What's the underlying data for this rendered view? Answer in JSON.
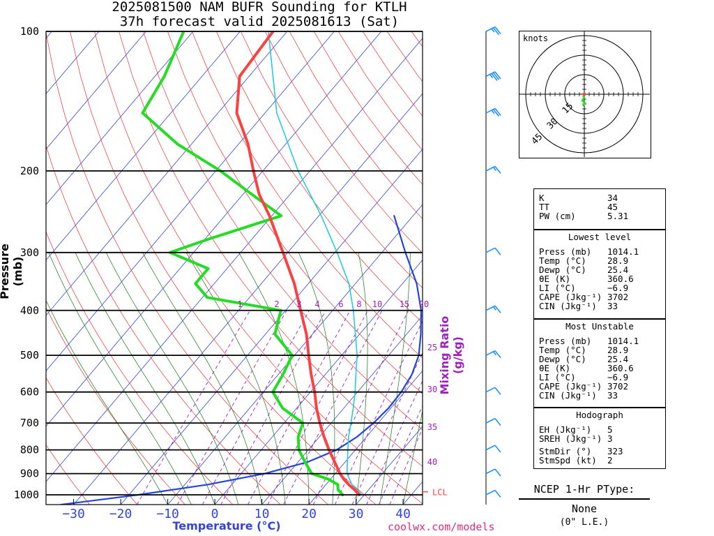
{
  "title": {
    "line1": "2025081500 NAM BUFR Sounding for KTLH",
    "line2": "37h forecast valid 2025081613 (Sat)"
  },
  "credit": "coolwx.com/models",
  "colors": {
    "temperature": "#ff4040",
    "dewpoint": "#22dd22",
    "virtual_temp": "#22ccdd",
    "parcel": "#2244dd",
    "isotherm": "#3344dd",
    "dry_adiabat": "#ee3030",
    "moist_adiabat": "#117711",
    "mixing_ratio": "#a020c0",
    "barbs": "#1e90ff",
    "lcl": "#ff4040"
  },
  "chart_data": {
    "type": "line",
    "diagram": "skew-t log-p",
    "xlabel": "Temperature (°C)",
    "ylabel": "Pressure (mb)",
    "secondary_label": "Mixing Ratio (g/kg)",
    "x_ticks": [
      "−30",
      "−20",
      "−10",
      "0",
      "10",
      "20",
      "30",
      "40"
    ],
    "y_ticks": [
      "100",
      "200",
      "300",
      "400",
      "500",
      "600",
      "700",
      "800",
      "900",
      "1000"
    ],
    "ylim": [
      1050,
      100
    ],
    "xlim": [
      -40,
      45
    ],
    "mixing_ratio_labels": [
      "1",
      "2",
      "3",
      "4",
      "6",
      "8",
      "10",
      "15",
      "20",
      "25",
      "30",
      "35",
      "40"
    ],
    "lcl_label": "LCL",
    "lcl_pressure": 985,
    "series": [
      {
        "name": "Temperature",
        "pressure": [
          1000,
          975,
          950,
          925,
          900,
          850,
          800,
          750,
          700,
          650,
          600,
          550,
          500,
          450,
          400,
          350,
          300,
          250,
          225,
          200,
          175,
          150,
          125,
          100
        ],
        "values": [
          28.9,
          27.0,
          24.8,
          22.8,
          21.0,
          17.8,
          14.4,
          11.0,
          7.6,
          4.2,
          0.9,
          -3.0,
          -7.0,
          -11.3,
          -16.8,
          -23.0,
          -31.0,
          -40.5,
          -46.5,
          -52.0,
          -58.0,
          -66.0,
          -72.0,
          -73.0
        ]
      },
      {
        "name": "Dewpoint",
        "pressure": [
          1000,
          975,
          950,
          925,
          900,
          850,
          800,
          750,
          700,
          650,
          600,
          550,
          500,
          450,
          400,
          375,
          350,
          325,
          300,
          280,
          250,
          225,
          200,
          175,
          150,
          125,
          100
        ],
        "values": [
          25.4,
          23.5,
          22.5,
          19.5,
          15.0,
          11.5,
          8.0,
          5.5,
          4.0,
          -3.0,
          -8.0,
          -9.0,
          -10.5,
          -18.0,
          -21.0,
          -39.0,
          -44.0,
          -44.0,
          -55.0,
          -49.0,
          -38.0,
          -48.0,
          -59.0,
          -73.0,
          -86.0,
          -88.0,
          -92.0
        ]
      },
      {
        "name": "Virtual Temperature",
        "pressure": [
          1000,
          950,
          900,
          850,
          800,
          750,
          700,
          650,
          600,
          550,
          500,
          450,
          400,
          350,
          300,
          250,
          200,
          150,
          100
        ],
        "values": [
          29.5,
          25.5,
          22.5,
          20.5,
          18.4,
          16.2,
          14.2,
          12.0,
          9.5,
          6.5,
          3.3,
          -0.9,
          -5.6,
          -11.4,
          -19.5,
          -29.5,
          -42.5,
          -57.5,
          -74.0
        ]
      },
      {
        "name": "Parcel",
        "pressure": [
          1050,
          1000,
          950,
          900,
          850,
          800,
          750,
          700,
          650,
          600,
          550,
          500,
          450,
          400,
          350,
          300,
          250
        ],
        "values": [
          -32.7,
          -18.0,
          -5.0,
          5.0,
          12.0,
          16.0,
          18.0,
          19.0,
          19.5,
          19.3,
          18.4,
          16.4,
          13.0,
          8.8,
          3.0,
          -5.0,
          -14.0
        ]
      }
    ],
    "hodograph": {
      "unit_label": "knots",
      "ring_labels": [
        "15",
        "30",
        "45"
      ]
    },
    "wind_barbs": [
      {
        "pressure": 1000,
        "speed_kt": 10
      },
      {
        "pressure": 900,
        "speed_kt": 10
      },
      {
        "pressure": 800,
        "speed_kt": 10
      },
      {
        "pressure": 700,
        "speed_kt": 10
      },
      {
        "pressure": 600,
        "speed_kt": 10
      },
      {
        "pressure": 500,
        "speed_kt": 15
      },
      {
        "pressure": 400,
        "speed_kt": 15
      },
      {
        "pressure": 300,
        "speed_kt": 10
      },
      {
        "pressure": 200,
        "speed_kt": 15
      },
      {
        "pressure": 150,
        "speed_kt": 25
      },
      {
        "pressure": 125,
        "speed_kt": 35
      },
      {
        "pressure": 100,
        "speed_kt": 25
      }
    ]
  },
  "indices": {
    "basic": [
      {
        "label": "K",
        "value": "34"
      },
      {
        "label": "TT",
        "value": "45"
      },
      {
        "label": "PW (cm)",
        "value": "5.31"
      }
    ],
    "lowest_level": {
      "header": "Lowest level",
      "rows": [
        {
          "label": "Press (mb)",
          "value": "1014.1"
        },
        {
          "label": "Temp (°C)",
          "value": "28.9"
        },
        {
          "label": "Dewp (°C)",
          "value": "25.4"
        },
        {
          "label": "θE (K)",
          "value": "360.6"
        },
        {
          "label": "LI (°C)",
          "value": "−6.9"
        },
        {
          "label": "CAPE (Jkg⁻¹)",
          "value": "3702"
        },
        {
          "label": "CIN (Jkg⁻¹)",
          "value": "33"
        }
      ]
    },
    "most_unstable": {
      "header": "Most Unstable",
      "rows": [
        {
          "label": "Press (mb)",
          "value": "1014.1"
        },
        {
          "label": "Temp (°C)",
          "value": "28.9"
        },
        {
          "label": "Dewp (°C)",
          "value": "25.4"
        },
        {
          "label": "θE (K)",
          "value": "360.6"
        },
        {
          "label": "LI (°C)",
          "value": "−6.9"
        },
        {
          "label": "CAPE (Jkg⁻¹)",
          "value": "3702"
        },
        {
          "label": "CIN (Jkg⁻¹)",
          "value": "33"
        }
      ]
    },
    "hodograph": {
      "header": "Hodograph",
      "rows": [
        {
          "label": "EH (Jkg⁻¹)",
          "value": "5"
        },
        {
          "label": "SREH (Jkg⁻¹)",
          "value": "3"
        },
        {
          "label": "StmDir (°)",
          "value": "323"
        },
        {
          "label": "StmSpd (kt)",
          "value": "2"
        }
      ]
    }
  },
  "ptype": {
    "title": "NCEP 1-Hr PType:",
    "value": "None",
    "note": "(0\" L.E.)"
  }
}
